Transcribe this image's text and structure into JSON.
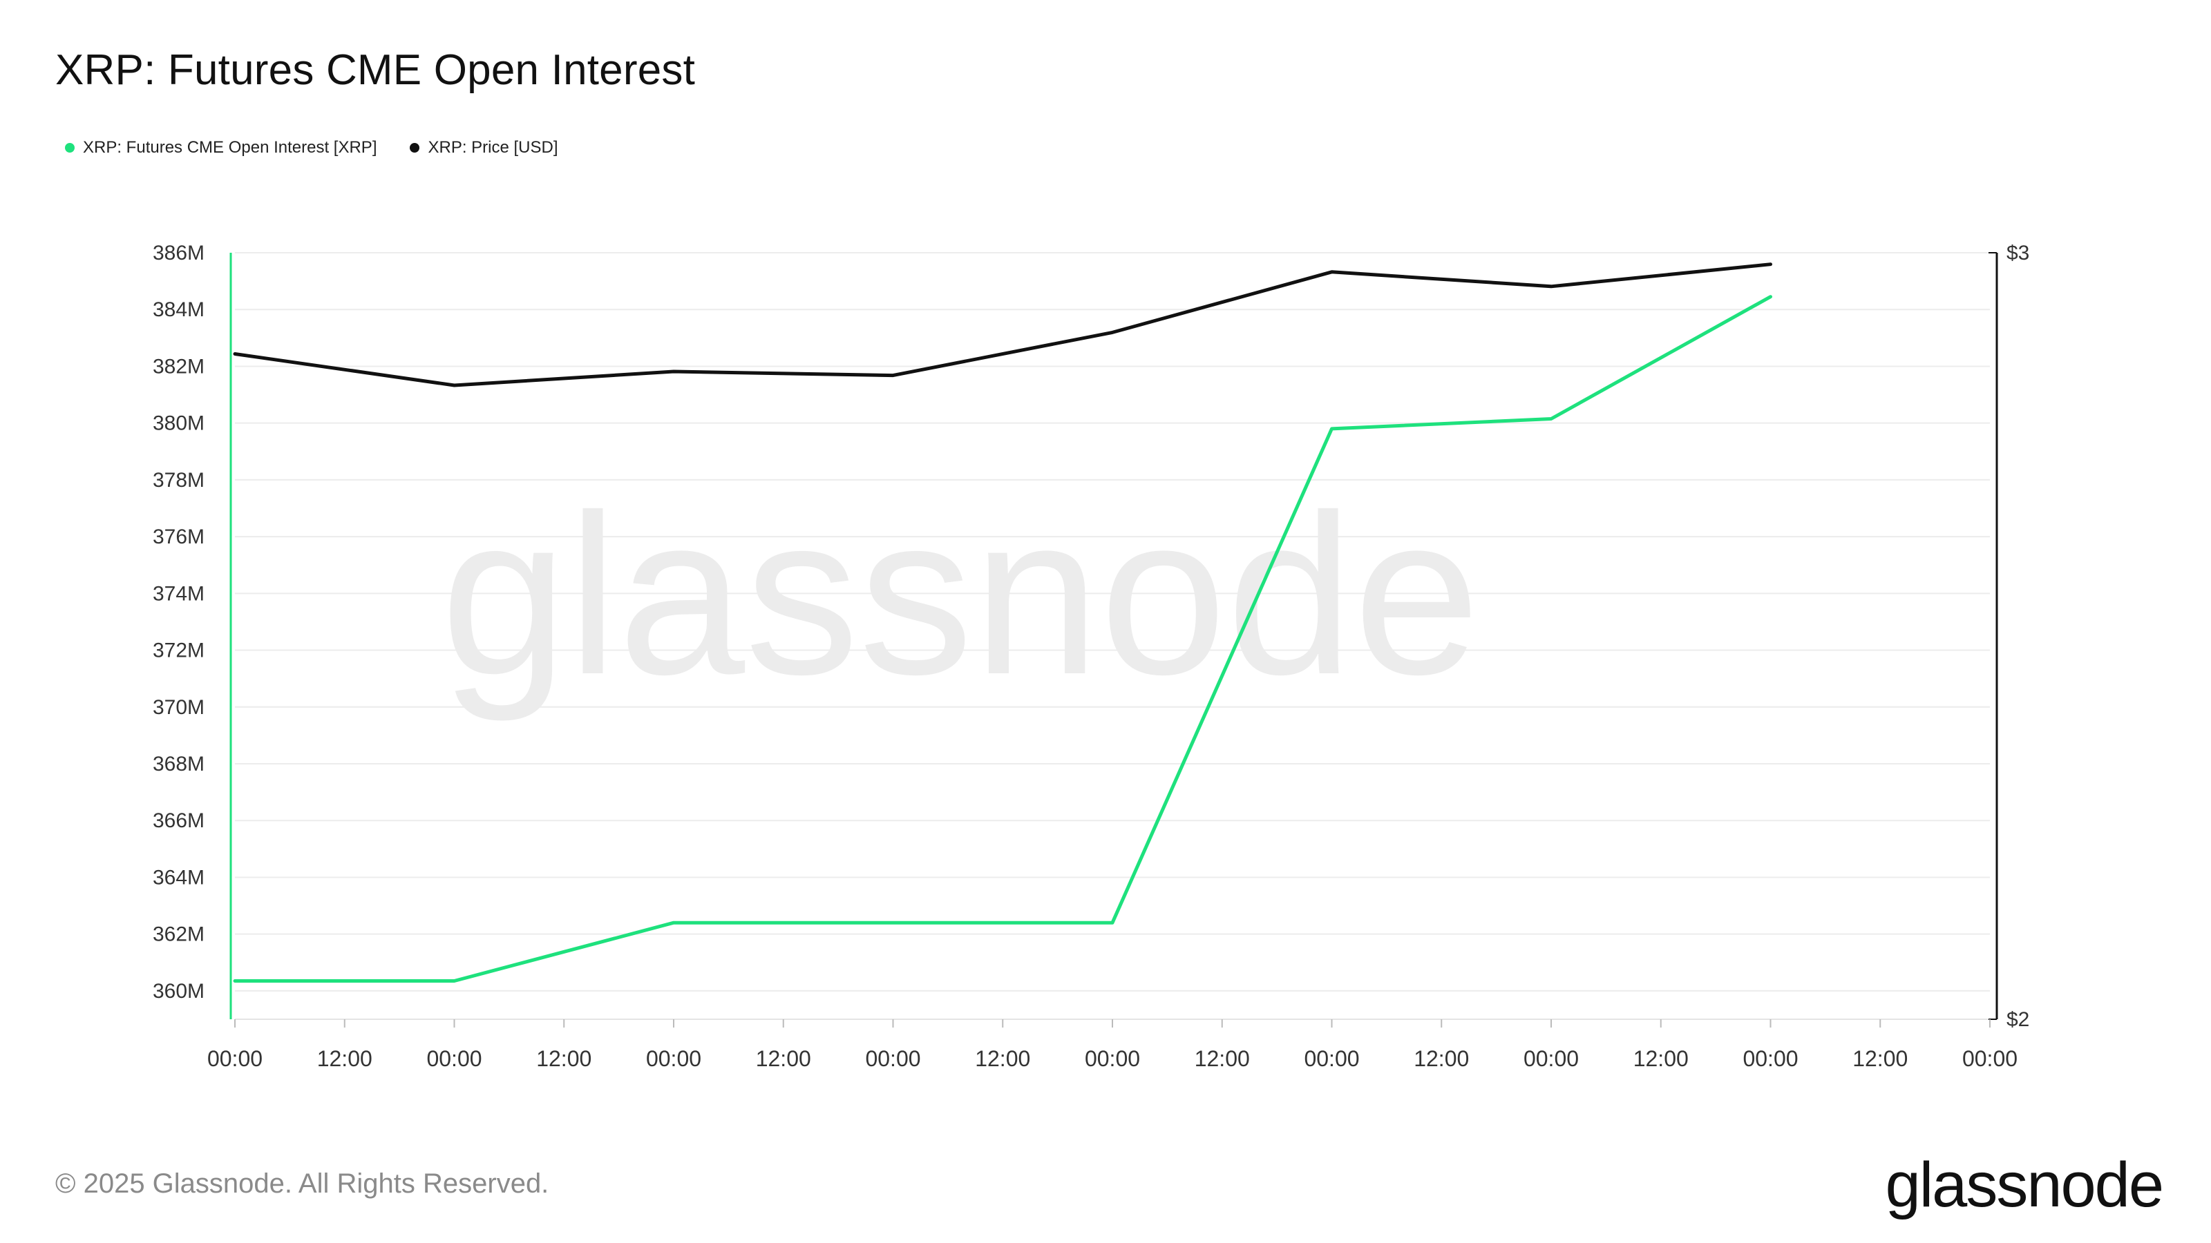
{
  "title": "XRP: Futures CME Open Interest",
  "legend": [
    {
      "label": "XRP: Futures CME Open Interest [XRP]",
      "color": "#1ee17d"
    },
    {
      "label": "XRP: Price [USD]",
      "color": "#111111"
    }
  ],
  "footer": "© 2025 Glassnode. All Rights Reserved.",
  "brand": "glassnode",
  "watermark": "glassnode",
  "chart_data": {
    "type": "line",
    "x_ticks": [
      "00:00",
      "12:00",
      "00:00",
      "12:00",
      "00:00",
      "12:00",
      "00:00",
      "12:00",
      "00:00",
      "12:00",
      "00:00",
      "12:00",
      "00:00",
      "12:00",
      "00:00",
      "12:00",
      "00:00"
    ],
    "y_left": {
      "ticks": [
        "386M",
        "384M",
        "382M",
        "380M",
        "378M",
        "376M",
        "374M",
        "372M",
        "370M",
        "368M",
        "366M",
        "364M",
        "362M",
        "360M"
      ],
      "min": 359,
      "max": 386,
      "unit": "M"
    },
    "y_right": {
      "ticks": [
        "$3",
        "$2"
      ],
      "min": 2,
      "max": 3
    },
    "series": [
      {
        "name": "XRP: Futures CME Open Interest [XRP]",
        "axis": "left",
        "color": "#1ee17d",
        "points": [
          [
            0,
            360.35
          ],
          [
            2,
            360.35
          ],
          [
            4,
            362.4
          ],
          [
            6,
            362.4
          ],
          [
            8,
            362.4
          ],
          [
            10,
            379.8
          ],
          [
            12,
            380.15
          ],
          [
            14,
            384.45
          ]
        ]
      },
      {
        "name": "XRP: Price [USD]",
        "axis": "right",
        "color": "#111111",
        "points": [
          [
            0,
            2.868
          ],
          [
            2,
            2.827
          ],
          [
            4,
            2.845
          ],
          [
            6,
            2.84
          ],
          [
            8,
            2.896
          ],
          [
            10,
            2.975
          ],
          [
            12,
            2.956
          ],
          [
            14,
            2.985
          ]
        ]
      }
    ],
    "grid": true
  }
}
